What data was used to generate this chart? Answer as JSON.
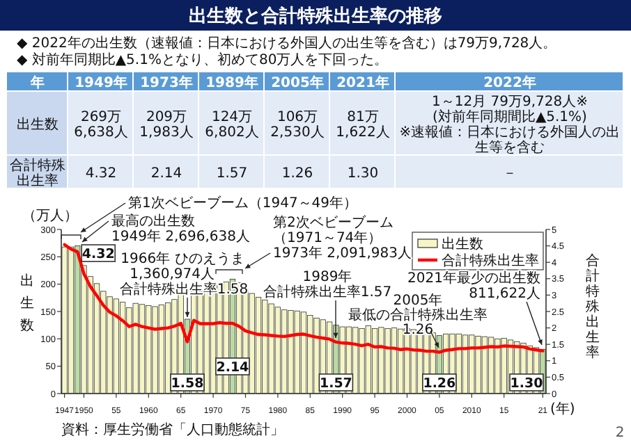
{
  "chart_data": {
    "type": "bar",
    "title": "出生数と合計特殊出生率の推移",
    "ylabel": "出生数",
    "y2label": "合計特殊出生率",
    "legend": "top right",
    "annotations": [
      "◆ 2022年の出生数（速報値：日本における外国人の出生等を含む）は79万9,728人。",
      "◆ 対前年同期比▲5.1%となり、初めて80万人を下回った。",
      "年",
      "1949年",
      "1973年",
      "1989年",
      "2005年",
      "2021年",
      "2022年",
      "出生数",
      "269万\n6,638人",
      "209万\n1,983人",
      "124万\n6,802人",
      "106万\n2,530人",
      "81万\n1,622人",
      "1～12月 79万9,728人※\n(対前年同期間比▲5.1%)\n※速報値：日本における外国人の出生等を含む",
      "合計特殊出生率",
      "4.32",
      "2.14",
      "1.57",
      "1.26",
      "1.30",
      "－",
      "（万人）",
      "第1次ベビーブーム（1947～49年）",
      "最高の出生数",
      "1949年 2,696,638人",
      "1966年 ひのえうま",
      "1,360,974人",
      "合計特殊出生率1.58",
      "第2次ベビーブーム",
      "（1971～74年）",
      "1973年 2,091,983人",
      "1989年",
      "合計特殊出生率1.57",
      "2005年",
      "最低の合計特殊出生率",
      "1.26",
      "2021年最少の出生数",
      "811,622人",
      "(年)",
      "資料：厚生労働省「人口動態統計」",
      "2"
    ],
    "x": [
      1947,
      1948,
      1949,
      1950,
      1951,
      1952,
      1953,
      1954,
      1955,
      1956,
      1957,
      1958,
      1959,
      1960,
      1961,
      1962,
      1963,
      1964,
      1965,
      1966,
      1967,
      1968,
      1969,
      1970,
      1971,
      1972,
      1973,
      1974,
      1975,
      1976,
      1977,
      1978,
      1979,
      1980,
      1981,
      1982,
      1983,
      1984,
      1985,
      1986,
      1987,
      1988,
      1989,
      1990,
      1991,
      1992,
      1993,
      1994,
      1995,
      1996,
      1997,
      1998,
      1999,
      2000,
      2001,
      2002,
      2003,
      2004,
      2005,
      2006,
      2007,
      2008,
      2009,
      2010,
      2011,
      2012,
      2013,
      2014,
      2015,
      2016,
      2017,
      2018,
      2019,
      2020,
      2021
    ],
    "xlim": [
      1946.5,
      2021.5
    ],
    "xticks": [
      1947,
      1950,
      {
        "value": 1955,
        "label": "55"
      },
      1960,
      {
        "value": 1965,
        "label": "65"
      },
      1970,
      {
        "value": 1975,
        "label": "75"
      },
      1980,
      {
        "value": 1985,
        "label": "85"
      },
      1990,
      {
        "value": 1995,
        "label": "95"
      },
      2000,
      {
        "value": 2005,
        "label": "05"
      },
      2010,
      {
        "value": 2015,
        "label": "15"
      },
      {
        "value": 2021,
        "label": "21"
      }
    ],
    "ylim": [
      0,
      300
    ],
    "yticks": [
      0,
      50,
      100,
      150,
      200,
      250,
      300
    ],
    "y2lim": [
      0,
      5
    ],
    "y2ticks": [
      0,
      0.5,
      1,
      1.5,
      2,
      2.5,
      3,
      3.5,
      4,
      4.5,
      5
    ],
    "series": [
      {
        "name": "出生数",
        "color": "#f5f5c6",
        "colors": [
          "#f5f5c6",
          "#f5f5c6",
          "#b9dba3",
          "#f5f5c6",
          "#f5f5c6",
          "#f5f5c6",
          "#f5f5c6",
          "#f5f5c6",
          "#f5f5c6",
          "#f5f5c6",
          "#f5f5c6",
          "#f5f5c6",
          "#f5f5c6",
          "#f5f5c6",
          "#f5f5c6",
          "#f5f5c6",
          "#f5f5c6",
          "#f5f5c6",
          "#f5f5c6",
          "#b9dba3",
          "#f5f5c6",
          "#f5f5c6",
          "#f5f5c6",
          "#f5f5c6",
          "#f5f5c6",
          "#f5f5c6",
          "#b9dba3",
          "#f5f5c6",
          "#f5f5c6",
          "#f5f5c6",
          "#f5f5c6",
          "#f5f5c6",
          "#f5f5c6",
          "#f5f5c6",
          "#f5f5c6",
          "#f5f5c6",
          "#f5f5c6",
          "#f5f5c6",
          "#f5f5c6",
          "#f5f5c6",
          "#f5f5c6",
          "#f5f5c6",
          "#b9dba3",
          "#f5f5c6",
          "#f5f5c6",
          "#f5f5c6",
          "#f5f5c6",
          "#f5f5c6",
          "#f5f5c6",
          "#f5f5c6",
          "#f5f5c6",
          "#f5f5c6",
          "#f5f5c6",
          "#f5f5c6",
          "#f5f5c6",
          "#f5f5c6",
          "#f5f5c6",
          "#f5f5c6",
          "#b9dba3",
          "#f5f5c6",
          "#f5f5c6",
          "#f5f5c6",
          "#f5f5c6",
          "#f5f5c6",
          "#f5f5c6",
          "#f5f5c6",
          "#f5f5c6",
          "#f5f5c6",
          "#f5f5c6",
          "#f5f5c6",
          "#f5f5c6",
          "#f5f5c6",
          "#f5f5c6",
          "#f5f5c6",
          "#b9dba3"
        ],
        "values": [
          268,
          268,
          270,
          234,
          214,
          201,
          187,
          177,
          173,
          167,
          157,
          165,
          163,
          161,
          159,
          162,
          166,
          172,
          182,
          136,
          194,
          187,
          189,
          193,
          200,
          204,
          209,
          203,
          190,
          183,
          176,
          171,
          164,
          158,
          153,
          152,
          151,
          149,
          143,
          138,
          135,
          131,
          125,
          122,
          122,
          121,
          119,
          124,
          119,
          121,
          119,
          120,
          118,
          119,
          117,
          115,
          112,
          111,
          106,
          109,
          109,
          109,
          107,
          107,
          105,
          104,
          103,
          100,
          101,
          98,
          95,
          92,
          87,
          84,
          81
        ]
      },
      {
        "name": "合計特殊出生率",
        "type": "line",
        "axis": "y2",
        "color": "#ff0000",
        "values": [
          4.54,
          4.4,
          4.32,
          3.65,
          3.26,
          2.98,
          2.69,
          2.48,
          2.37,
          2.22,
          2.04,
          2.11,
          2.04,
          2.0,
          1.96,
          1.98,
          2.0,
          2.05,
          2.14,
          1.58,
          2.23,
          2.13,
          2.13,
          2.13,
          2.16,
          2.14,
          2.14,
          2.05,
          1.91,
          1.85,
          1.8,
          1.79,
          1.77,
          1.75,
          1.74,
          1.77,
          1.8,
          1.81,
          1.76,
          1.72,
          1.69,
          1.66,
          1.57,
          1.54,
          1.53,
          1.5,
          1.46,
          1.5,
          1.42,
          1.43,
          1.39,
          1.38,
          1.34,
          1.36,
          1.33,
          1.32,
          1.29,
          1.29,
          1.26,
          1.32,
          1.34,
          1.37,
          1.37,
          1.39,
          1.39,
          1.41,
          1.43,
          1.42,
          1.45,
          1.44,
          1.43,
          1.42,
          1.36,
          1.33,
          1.3
        ],
        "value_labels": [
          null,
          null,
          "4.32",
          null,
          null,
          null,
          null,
          null,
          null,
          null,
          null,
          null,
          null,
          null,
          null,
          null,
          null,
          null,
          null,
          "1.58",
          null,
          null,
          null,
          null,
          null,
          null,
          "2.14",
          null,
          null,
          null,
          null,
          null,
          null,
          null,
          null,
          null,
          null,
          null,
          null,
          null,
          null,
          null,
          "1.57",
          null,
          null,
          null,
          null,
          null,
          null,
          null,
          null,
          null,
          null,
          null,
          null,
          null,
          null,
          null,
          "1.26",
          null,
          null,
          null,
          null,
          null,
          null,
          null,
          null,
          null,
          null,
          null,
          null,
          null,
          null,
          null,
          "1.30"
        ]
      }
    ]
  }
}
